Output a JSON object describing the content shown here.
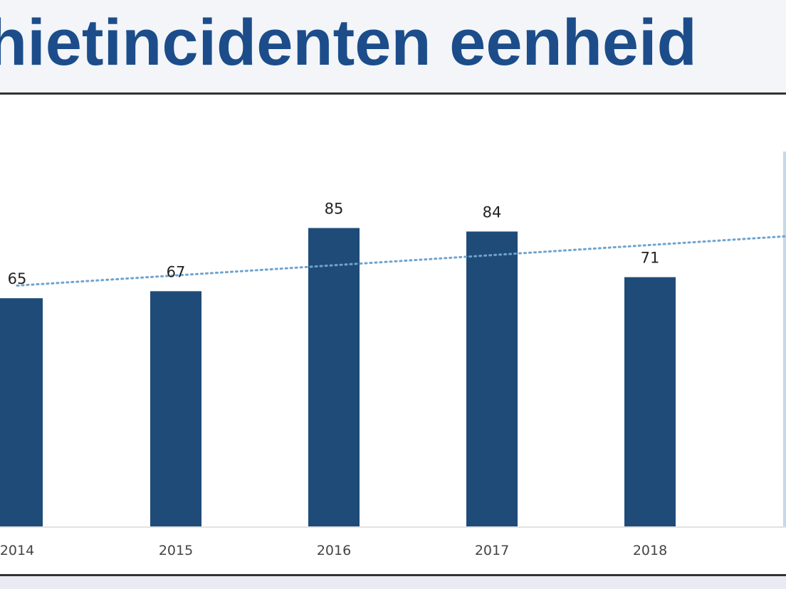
{
  "title": "hietincidenten eenheid",
  "colors": {
    "bar": "#1f4b78",
    "trend": "#6fa3cf",
    "title": "#1c4d8a",
    "next_bar_edge": "#c7d8ea"
  },
  "chart_data": {
    "type": "bar",
    "categories": [
      "2014",
      "2015",
      "2016",
      "2017",
      "2018"
    ],
    "values": [
      65,
      67,
      85,
      84,
      71
    ],
    "data_labels": [
      "65",
      "67",
      "85",
      "84",
      "71"
    ],
    "trendline": "linear, dotted",
    "ylim": [
      0,
      100
    ],
    "xlabel": "",
    "ylabel": "",
    "grid": false,
    "legend": "none"
  }
}
